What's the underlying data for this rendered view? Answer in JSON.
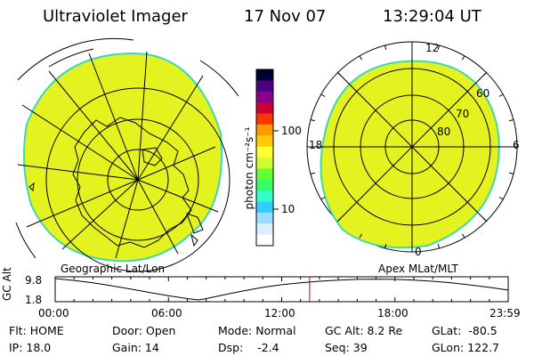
{
  "header": {
    "instrument": "Ultraviolet Imager",
    "date": "17 Nov 07",
    "time": "13:29:04 UT"
  },
  "colorbar": {
    "label": "photon cm⁻²s⁻¹",
    "tick_labels": [
      "100",
      "10"
    ],
    "colors": [
      "#000033",
      "#4b0082",
      "#8b008b",
      "#cc0033",
      "#ff3300",
      "#ff9900",
      "#ffcc00",
      "#ffff33",
      "#ccff33",
      "#66ff33",
      "#33ff66",
      "#33ffcc",
      "#33ccff",
      "#99ddff",
      "#ddeeff",
      "#ffffff"
    ]
  },
  "left_map": {
    "label": "Geographic Lat/Lon",
    "fill_color": "#e4f220"
  },
  "right_map": {
    "label": "Apex MLat/MLT",
    "mlt_labels": [
      "12",
      "18",
      "6",
      "0"
    ],
    "mlat_labels": [
      "60",
      "70",
      "80"
    ],
    "fill_color": "#e4f220"
  },
  "chart_data": {
    "type": "line",
    "ylabel": "GC Alt",
    "y_ticks": [
      "9.8",
      "1.8"
    ],
    "x_ticks": [
      "00:00",
      "06:00",
      "12:00",
      "18:00",
      "23:59"
    ],
    "xlim_hours": [
      0,
      24
    ],
    "ylim": [
      1.8,
      9.8
    ],
    "series": [
      {
        "x_hours": [
          0,
          1,
          2,
          3,
          4,
          5,
          6,
          7,
          7.6,
          8,
          9,
          10,
          11,
          12,
          13,
          14,
          15,
          16,
          17,
          18,
          19,
          20,
          21,
          22,
          23,
          24
        ],
        "y": [
          9.8,
          9.1,
          8.2,
          7.1,
          5.9,
          4.6,
          3.4,
          2.3,
          1.8,
          2.3,
          3.8,
          5.2,
          6.5,
          7.5,
          8.2,
          8.8,
          9.2,
          9.5,
          9.6,
          9.5,
          9.2,
          8.8,
          8.2,
          7.4,
          6.5,
          5.5
        ]
      }
    ],
    "marker_hour": 13.48,
    "marker_color": "#cc0000"
  },
  "status": {
    "flt": "Flt: HOME",
    "ip": "IP: 18.0",
    "door": "Door: Open",
    "gain": "Gain: 14",
    "mode": "Mode: Normal",
    "dsp": "Dsp:    -2.4",
    "gcalt": "GC Alt: 8.2 Re",
    "seq": "Seq: 39",
    "glat": "GLat:  -80.5",
    "glon": "GLon: 122.7"
  }
}
